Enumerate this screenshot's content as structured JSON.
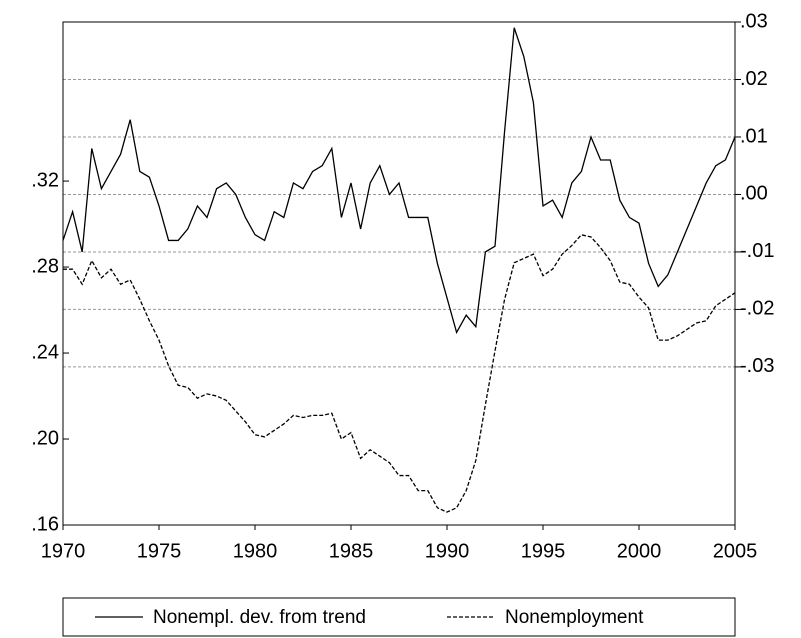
{
  "chart_data": {
    "type": "line",
    "x": [
      1970,
      1970.5,
      1971,
      1971.5,
      1972,
      1972.5,
      1973,
      1973.5,
      1974,
      1974.5,
      1975,
      1975.5,
      1976,
      1976.5,
      1977,
      1977.5,
      1978,
      1978.5,
      1979,
      1979.5,
      1980,
      1980.5,
      1981,
      1981.5,
      1982,
      1982.5,
      1983,
      1983.5,
      1984,
      1984.5,
      1985,
      1985.5,
      1986,
      1986.5,
      1987,
      1987.5,
      1988,
      1988.5,
      1989,
      1989.5,
      1990,
      1990.5,
      1991,
      1991.5,
      1992,
      1992.5,
      1993,
      1993.5,
      1994,
      1994.5,
      1995,
      1995.5,
      1996,
      1996.5,
      1997,
      1997.5,
      1998,
      1998.5,
      1999,
      1999.5,
      2000,
      2000.5,
      2001,
      2001.5,
      2002,
      2002.5,
      2003,
      2003.5,
      2004,
      2004.5,
      2005
    ],
    "xlim": [
      1970,
      2005
    ],
    "xticks": [
      1970,
      1975,
      1980,
      1985,
      1990,
      1995,
      2000,
      2005
    ],
    "ylim": [
      0.16,
      0.394
    ],
    "yticks": [
      {
        "value": 0.16,
        "label": ".16"
      },
      {
        "value": 0.2,
        "label": ".20"
      },
      {
        "value": 0.24,
        "label": ".24"
      },
      {
        "value": 0.28,
        "label": ".28"
      },
      {
        "value": 0.32,
        "label": ".32"
      }
    ],
    "y2lim": [
      -0.0575,
      0.03
    ],
    "y2ticks": [
      {
        "value": 0.03,
        "label": ".03"
      },
      {
        "value": 0.02,
        "label": ".02"
      },
      {
        "value": 0.01,
        "label": ".01"
      },
      {
        "value": 0,
        "label": ".00"
      },
      {
        "value": -0.01,
        "label": "-.01"
      },
      {
        "value": -0.02,
        "label": "-.02"
      },
      {
        "value": -0.03,
        "label": "-.03"
      }
    ],
    "grid": "y2",
    "legend": "bottom",
    "series": [
      {
        "name": "Nonempl. dev. from trend",
        "color": "#000000",
        "dash": "solid",
        "axis": "y2",
        "values": [
          -0.008,
          -0.003,
          -0.01,
          0.008,
          0.001,
          0.004,
          0.007,
          0.013,
          0.004,
          0.003,
          -0.002,
          -0.008,
          -0.008,
          -0.006,
          -0.002,
          -0.004,
          0.001,
          0.002,
          0.0,
          -0.004,
          -0.007,
          -0.008,
          -0.003,
          -0.004,
          0.002,
          0.001,
          0.004,
          0.005,
          0.008,
          -0.004,
          0.002,
          -0.006,
          0.002,
          0.005,
          0.0,
          0.002,
          -0.004,
          -0.004,
          -0.004,
          -0.012,
          -0.018,
          -0.024,
          -0.021,
          -0.023,
          -0.01,
          -0.009,
          0.011,
          0.029,
          0.024,
          0.016,
          -0.002,
          -0.001,
          -0.004,
          0.002,
          0.004,
          0.01,
          0.006,
          0.006,
          -0.001,
          -0.004,
          -0.005,
          -0.012,
          -0.016,
          -0.014,
          -0.01,
          -0.006,
          -0.002,
          0.002,
          0.005,
          0.006,
          0.01
        ]
      },
      {
        "name": "Nonemployment",
        "color": "#000000",
        "dash": "dashed",
        "axis": "y",
        "values": [
          0.279,
          0.279,
          0.272,
          0.283,
          0.275,
          0.279,
          0.272,
          0.274,
          0.265,
          0.255,
          0.246,
          0.234,
          0.225,
          0.224,
          0.219,
          0.221,
          0.22,
          0.218,
          0.213,
          0.208,
          0.202,
          0.201,
          0.204,
          0.207,
          0.211,
          0.21,
          0.211,
          0.211,
          0.212,
          0.2,
          0.203,
          0.191,
          0.195,
          0.192,
          0.189,
          0.183,
          0.183,
          0.176,
          0.176,
          0.168,
          0.166,
          0.168,
          0.176,
          0.19,
          0.216,
          0.241,
          0.265,
          0.282,
          0.284,
          0.286,
          0.276,
          0.279,
          0.286,
          0.29,
          0.295,
          0.294,
          0.289,
          0.283,
          0.273,
          0.272,
          0.266,
          0.261,
          0.246,
          0.246,
          0.248,
          0.251,
          0.254,
          0.255,
          0.262,
          0.265,
          0.268
        ]
      }
    ]
  }
}
